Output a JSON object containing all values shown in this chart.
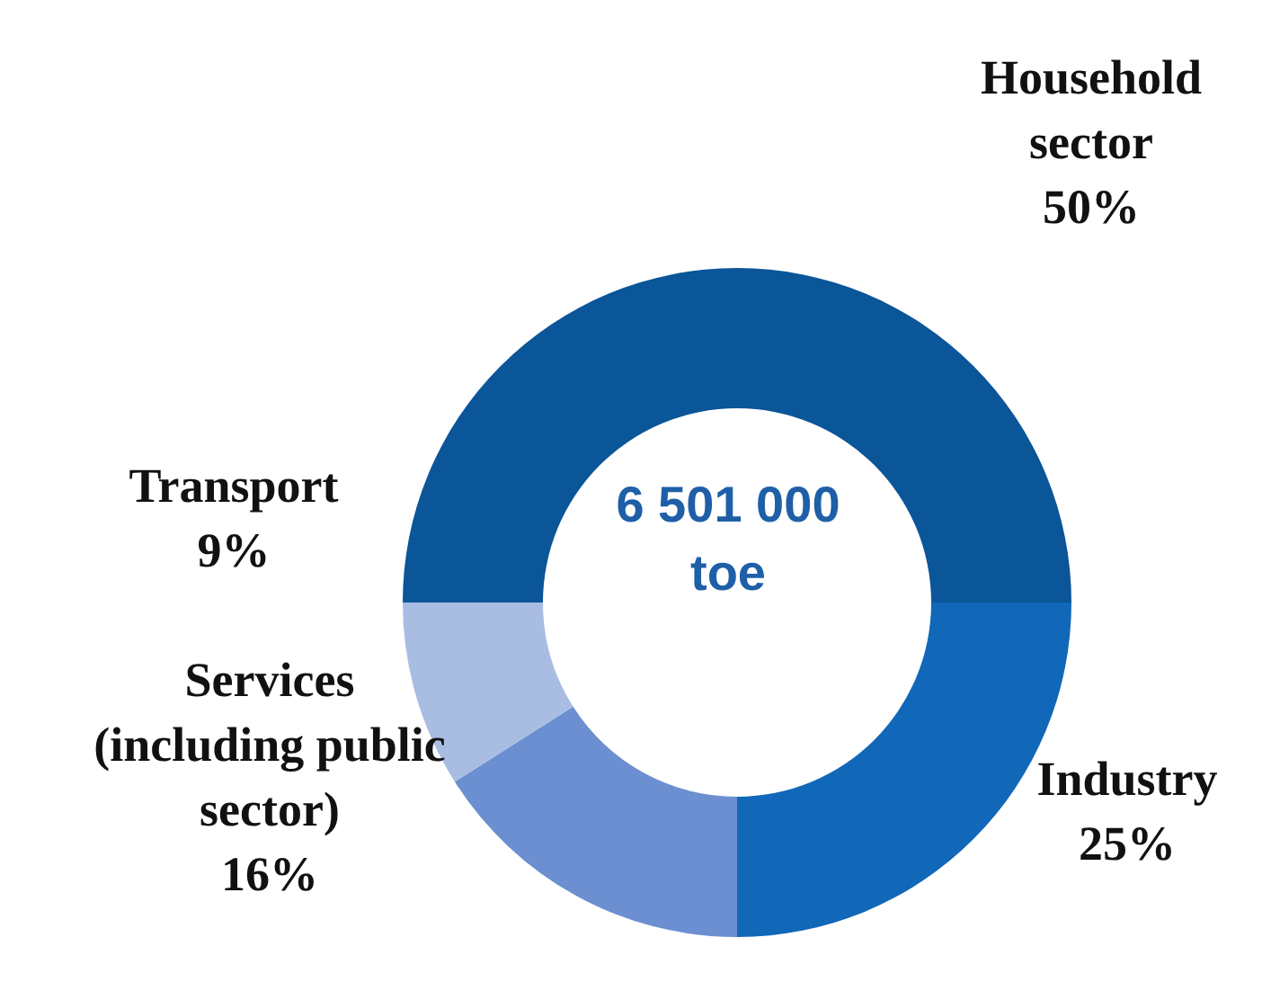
{
  "chart_data": {
    "type": "donut",
    "categories": [
      "Household sector",
      "Industry",
      "Services (including public sector)",
      "Transport"
    ],
    "values": [
      50,
      25,
      16,
      9
    ],
    "colors": [
      "#0b5599",
      "#1167b8",
      "#6b8fd0",
      "#a9bde3"
    ],
    "value_labels": [
      "50%",
      "25%",
      "16%",
      "9%"
    ],
    "annotations": [
      "6 501 000 toe"
    ]
  }
}
